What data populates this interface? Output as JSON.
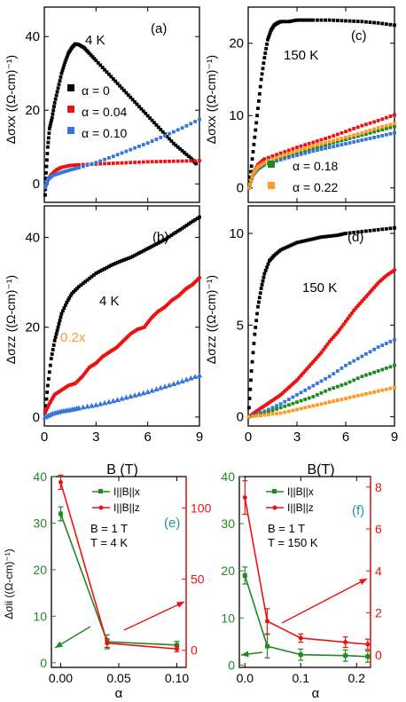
{
  "chart_data": [
    {
      "id": "a",
      "type": "scatter",
      "panel_label": "(a)",
      "annotation": "4 K",
      "xlim": [
        0,
        9
      ],
      "ylim": [
        -5,
        48
      ],
      "xticks": [],
      "yticks": [
        0,
        20,
        40
      ],
      "ylabel": "Δσxx ((Ω-cm)⁻¹)",
      "series": [
        {
          "name": "α = 0",
          "color": "#000000",
          "marker": "square",
          "x": [
            0.05,
            0.1,
            0.2,
            0.3,
            0.45,
            0.6,
            0.8,
            1.0,
            1.2,
            1.4,
            1.6,
            1.8,
            2.0,
            2.3,
            2.6,
            3.0,
            3.5,
            4.0,
            4.5,
            5.0,
            5.5,
            6.0,
            6.5,
            7.0,
            7.5,
            8.0,
            8.5,
            8.8
          ],
          "y": [
            -3,
            3,
            10,
            15,
            18,
            22,
            26,
            30,
            33,
            35.5,
            37,
            38,
            37.8,
            37,
            35.5,
            33.5,
            31,
            28.5,
            26,
            23.5,
            21,
            18.5,
            16,
            13.5,
            11,
            9,
            7,
            5.5
          ]
        },
        {
          "name": "α = 0.04",
          "color": "#ee1111",
          "marker": "square",
          "x": [
            0.05,
            0.2,
            0.4,
            0.7,
            1.0,
            1.5,
            2.0,
            3.0,
            4.0,
            5.0,
            6.0,
            7.0,
            8.0,
            9.0
          ],
          "y": [
            -1,
            1,
            2.5,
            3.8,
            4.5,
            5,
            5.2,
            5.4,
            5.6,
            5.8,
            6,
            6.1,
            6.2,
            6.3
          ]
        },
        {
          "name": "α = 0.10",
          "color": "#3377dd",
          "marker": "square",
          "x": [
            0.05,
            0.2,
            0.5,
            1.0,
            1.5,
            2.0,
            3.0,
            4.0,
            5.0,
            6.0,
            7.0,
            8.0,
            9.0
          ],
          "y": [
            -1,
            1.2,
            2.3,
            3.1,
            3.8,
            4.4,
            5.8,
            7.5,
            9.3,
            11.1,
            13.1,
            15.2,
            17.5
          ]
        }
      ]
    },
    {
      "id": "b",
      "type": "scatter",
      "panel_label": "(b)",
      "annotation": "4 K",
      "scale_note": "0.2x",
      "xlim": [
        0,
        9
      ],
      "ylim": [
        -2,
        47
      ],
      "xticks": [
        0,
        3,
        6,
        9
      ],
      "yticks": [
        0,
        20,
        40
      ],
      "xlabel": "B (T)",
      "ylabel": "Δσzz ((Ω-cm)⁻¹)",
      "series": [
        {
          "color": "#000000",
          "marker": "square",
          "x": [
            0.05,
            0.2,
            0.4,
            0.6,
            0.8,
            1.0,
            1.3,
            1.6,
            2.0,
            2.5,
            3.0,
            3.5,
            4.0,
            4.5,
            5.0,
            5.5,
            6.0,
            6.5,
            7.0,
            7.5,
            8.0,
            8.5,
            9.0
          ],
          "y": [
            1,
            7,
            13,
            17,
            20,
            23,
            25.5,
            27.5,
            29,
            30.5,
            32,
            33,
            34,
            34.8,
            35.5,
            36.5,
            37.5,
            38.5,
            39.5,
            40.8,
            42,
            43.3,
            44.5
          ]
        },
        {
          "color": "#ee1111",
          "marker": "circle",
          "x": [
            0.05,
            0.3,
            0.6,
            1.0,
            1.4,
            1.8,
            2.2,
            2.6,
            3.0,
            3.4,
            3.8,
            4.2,
            4.6,
            5.0,
            5.4,
            5.8,
            6.2,
            6.6,
            7.0,
            7.4,
            7.8,
            8.2,
            8.6,
            9.0
          ],
          "y": [
            1,
            3,
            5,
            6,
            7,
            7.5,
            9,
            11,
            12,
            13.5,
            14.5,
            15.5,
            17,
            18.5,
            19.5,
            20,
            22,
            23.5,
            24.5,
            26,
            27,
            28.5,
            29.5,
            31
          ]
        },
        {
          "color": "#3377dd",
          "marker": "triangle",
          "x": [
            0.05,
            0.5,
            1.0,
            1.5,
            2.0,
            3.0,
            4.0,
            5.0,
            6.0,
            7.0,
            8.0,
            9.0
          ],
          "y": [
            0,
            0.8,
            1.3,
            1.6,
            2,
            2.7,
            3.6,
            4.6,
            5.6,
            6.8,
            8,
            9.3
          ]
        }
      ]
    },
    {
      "id": "c",
      "type": "scatter",
      "panel_label": "(c)",
      "annotation": "150 K",
      "xlim": [
        0,
        9
      ],
      "ylim": [
        -2,
        25
      ],
      "xticks": [],
      "yticks": [
        0,
        10,
        20
      ],
      "ylabel": "Δσxx ((Ω-cm)⁻¹)",
      "series": [
        {
          "name": "α = 0",
          "color": "#000000",
          "marker": "square",
          "x": [
            0.05,
            0.2,
            0.4,
            0.6,
            0.8,
            1.0,
            1.2,
            1.4,
            1.6,
            1.8,
            2.0,
            2.5,
            3.0,
            3.5,
            4.0,
            5.0,
            6.0,
            7.0,
            8.0,
            9.0
          ],
          "y": [
            0,
            3,
            7,
            11,
            15,
            18,
            20.5,
            21.8,
            22.5,
            22.8,
            23,
            23,
            23.2,
            23.2,
            23.2,
            23.2,
            23.1,
            23,
            22.8,
            22.5
          ]
        },
        {
          "name": "α = 0.04",
          "color": "#ee1111",
          "marker": "square",
          "x": [
            0.05,
            0.3,
            0.6,
            1.0,
            2.0,
            3.0,
            4.0,
            5.0,
            6.0,
            7.0,
            8.0,
            9.0
          ],
          "y": [
            0,
            2,
            3.2,
            4,
            4.8,
            5.6,
            6.3,
            7,
            7.8,
            8.6,
            9.3,
            10.1
          ]
        },
        {
          "name": "α = 0.10",
          "color": "#3377dd",
          "marker": "square",
          "x": [
            0.05,
            0.3,
            0.6,
            1.0,
            2.0,
            3.0,
            4.0,
            5.0,
            6.0,
            7.0,
            8.0,
            9.0
          ],
          "y": [
            0,
            1.8,
            2.6,
            3.2,
            3.9,
            4.5,
            5.1,
            5.6,
            6.1,
            6.6,
            7.1,
            7.6
          ]
        },
        {
          "name": "α = 0.18",
          "color": "#228822",
          "marker": "square",
          "x": [
            0.05,
            0.3,
            0.6,
            1.0,
            2.0,
            3.0,
            4.0,
            5.0,
            6.0,
            7.0,
            8.0,
            9.0
          ],
          "y": [
            0,
            1.9,
            2.8,
            3.4,
            4.2,
            4.9,
            5.5,
            6.1,
            6.7,
            7.3,
            7.9,
            8.5
          ]
        },
        {
          "name": "α = 0.22",
          "color": "#ff9922",
          "marker": "square",
          "x": [
            0.05,
            0.3,
            0.6,
            1.0,
            2.0,
            3.0,
            4.0,
            5.0,
            6.0,
            7.0,
            8.0,
            9.0
          ],
          "y": [
            0,
            2,
            2.9,
            3.5,
            4.4,
            5.1,
            5.8,
            6.4,
            7.0,
            7.6,
            8.3,
            8.9
          ]
        }
      ]
    },
    {
      "id": "d",
      "type": "scatter",
      "panel_label": "(d)",
      "annotation": "150 K",
      "xlim": [
        0,
        9
      ],
      "ylim": [
        -0.5,
        11.5
      ],
      "xticks": [
        0,
        3,
        6,
        9
      ],
      "yticks": [
        0,
        5,
        10
      ],
      "xlabel": "B(T)",
      "ylabel": "Δσzz ((Ω-cm)⁻¹)",
      "series": [
        {
          "color": "#000000",
          "marker": "square",
          "x": [
            0.05,
            0.2,
            0.4,
            0.6,
            0.8,
            1.0,
            1.3,
            1.6,
            2.0,
            2.5,
            3.0,
            3.5,
            4.0,
            4.5,
            5.0,
            5.5,
            6.0,
            7.0,
            8.0,
            9.0
          ],
          "y": [
            0.5,
            2.5,
            4.5,
            6,
            7,
            7.8,
            8.5,
            8.8,
            9.1,
            9.3,
            9.5,
            9.6,
            9.7,
            9.8,
            9.85,
            9.9,
            10,
            10.1,
            10.2,
            10.3
          ]
        },
        {
          "color": "#ee1111",
          "marker": "circle",
          "x": [
            0.05,
            0.5,
            1.0,
            1.5,
            2.0,
            2.5,
            3.0,
            3.5,
            4.0,
            4.5,
            5.0,
            5.5,
            6.0,
            6.5,
            7.0,
            7.5,
            8.0,
            8.5,
            9.0
          ],
          "y": [
            0,
            0.3,
            0.6,
            0.9,
            1.2,
            1.6,
            2.0,
            2.5,
            3.0,
            3.5,
            4.1,
            4.6,
            5.2,
            5.8,
            6.3,
            6.8,
            7.3,
            7.7,
            8.0
          ]
        },
        {
          "color": "#3377dd",
          "marker": "square",
          "x": [
            0.05,
            1.0,
            2.0,
            3.0,
            4.0,
            5.0,
            6.0,
            7.0,
            8.0,
            9.0
          ],
          "y": [
            0,
            0.3,
            0.7,
            1.2,
            1.7,
            2.2,
            2.8,
            3.3,
            3.8,
            4.2
          ]
        },
        {
          "color": "#228822",
          "marker": "square",
          "x": [
            0.05,
            1.0,
            2.0,
            3.0,
            4.0,
            5.0,
            6.0,
            7.0,
            8.0,
            9.0
          ],
          "y": [
            0,
            0.2,
            0.5,
            0.8,
            1.1,
            1.5,
            1.8,
            2.2,
            2.5,
            2.8
          ]
        },
        {
          "color": "#ff9922",
          "marker": "square",
          "x": [
            0.05,
            1.0,
            2.0,
            3.0,
            4.0,
            5.0,
            6.0,
            7.0,
            8.0,
            9.0
          ],
          "y": [
            0,
            0.1,
            0.2,
            0.4,
            0.6,
            0.8,
            1.0,
            1.2,
            1.4,
            1.6
          ]
        }
      ]
    },
    {
      "id": "e",
      "type": "line",
      "panel_label": "(e)",
      "xlim": [
        -0.008,
        0.108
      ],
      "ylim": [
        -1,
        40
      ],
      "ylim_right": [
        -12,
        122
      ],
      "xticks": [
        0.0,
        0.05,
        0.1
      ],
      "yticks": [
        0,
        10,
        20,
        30,
        40
      ],
      "yticks_right": [
        0,
        50,
        100
      ],
      "xlabel": "α",
      "ylabel": "Δσii ((Ω-cm)⁻¹)",
      "notes": [
        "B = 1 T",
        "T = 4 K"
      ],
      "series": [
        {
          "name": "I||B||x",
          "color": "#228822",
          "axis": "left",
          "x": [
            0,
            0.04,
            0.1
          ],
          "y": [
            32,
            4.5,
            3.8
          ],
          "err": [
            1.5,
            1.5,
            0.8
          ]
        },
        {
          "name": "I||B||z",
          "color": "#ee1111",
          "axis": "right",
          "x": [
            0,
            0.04,
            0.1
          ],
          "y": [
            118,
            5,
            1
          ],
          "err": [
            5,
            3,
            2
          ]
        }
      ]
    },
    {
      "id": "f",
      "type": "line",
      "panel_label": "(f)",
      "xlim": [
        -0.01,
        0.225
      ],
      "ylim": [
        -0.5,
        40
      ],
      "ylim_right": [
        -0.6,
        8.5
      ],
      "xticks": [
        0.0,
        0.1,
        0.2
      ],
      "yticks": [
        0,
        10,
        20,
        30,
        40
      ],
      "yticks_right": [
        0,
        2,
        4,
        6,
        8
      ],
      "xlabel": "α",
      "notes": [
        "B = 1 T",
        "T = 150 K"
      ],
      "series": [
        {
          "name": "I||B||x",
          "color": "#228822",
          "axis": "left",
          "x": [
            0,
            0.04,
            0.1,
            0.18,
            0.22
          ],
          "y": [
            19,
            4,
            2.2,
            2,
            1.8
          ],
          "err": [
            1.8,
            2.5,
            1.2,
            1.2,
            1.2
          ]
        },
        {
          "name": "I||B||z",
          "color": "#ee1111",
          "axis": "right",
          "x": [
            0,
            0.04,
            0.1,
            0.18,
            0.22
          ],
          "y": [
            7.5,
            1.6,
            0.8,
            0.6,
            0.5
          ],
          "err": [
            0.8,
            0.6,
            0.2,
            0.25,
            0.25
          ]
        }
      ]
    }
  ]
}
